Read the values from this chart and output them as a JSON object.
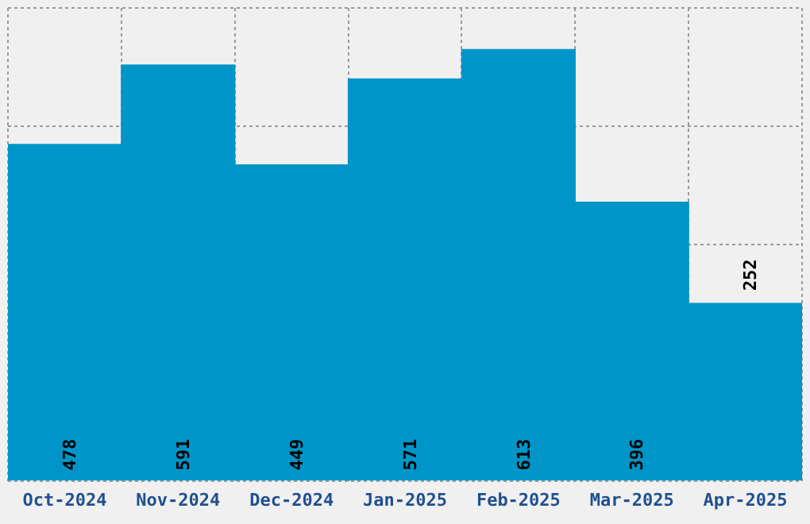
{
  "chart_data": {
    "type": "bar",
    "categories": [
      "Oct-2024",
      "Nov-2024",
      "Dec-2024",
      "Jan-2025",
      "Feb-2025",
      "Mar-2025",
      "Apr-2025"
    ],
    "values": [
      478,
      591,
      449,
      571,
      613,
      396,
      252
    ],
    "color": "#0095c8",
    "ylim": [
      0,
      672
    ],
    "tick_labels": "x",
    "grid": true,
    "data_labels": true
  }
}
